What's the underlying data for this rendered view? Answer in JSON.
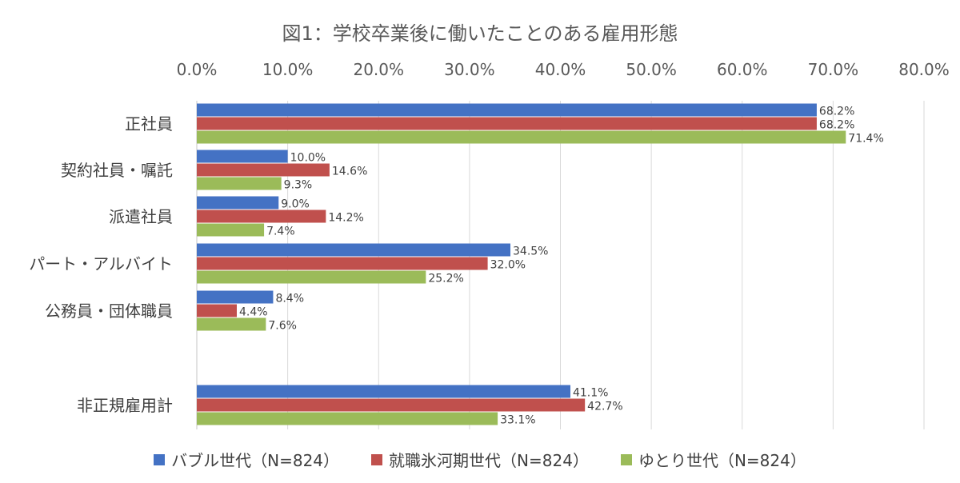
{
  "chart_data": {
    "type": "bar",
    "orientation": "horizontal",
    "title": "図1：学校卒業後に働いたことのある雇用形態",
    "xlim": [
      0,
      80
    ],
    "x_ticks": [
      "0.0%",
      "10.0%",
      "20.0%",
      "30.0%",
      "40.0%",
      "50.0%",
      "60.0%",
      "70.0%",
      "80.0%"
    ],
    "x_axis_position": "top",
    "grid": true,
    "legend_position": "bottom",
    "categories": [
      "正社員",
      "契約社員・嘱託",
      "派遣社員",
      "パート・アルバイト",
      "公務員・団体職員",
      "非正規雇用計"
    ],
    "series": [
      {
        "name": "バブル世代（N=824）",
        "color": "#4472C4",
        "values": [
          68.2,
          10.0,
          9.0,
          34.5,
          8.4,
          41.1
        ]
      },
      {
        "name": "就職氷河期世代（N=824）",
        "color": "#C0504D",
        "values": [
          68.2,
          14.6,
          14.2,
          32.0,
          4.4,
          42.7
        ]
      },
      {
        "name": "ゆとり世代（N=824）",
        "color": "#9BBB59",
        "values": [
          71.4,
          9.3,
          7.4,
          25.2,
          7.6,
          33.1
        ]
      }
    ],
    "value_labels": [
      [
        "68.2%",
        "10.0%",
        "9.0%",
        "34.5%",
        "8.4%",
        "41.1%"
      ],
      [
        "68.2%",
        "14.6%",
        "14.2%",
        "32.0%",
        "4.4%",
        "42.7%"
      ],
      [
        "71.4%",
        "9.3%",
        "7.4%",
        "25.2%",
        "7.6%",
        "33.1%"
      ]
    ]
  }
}
